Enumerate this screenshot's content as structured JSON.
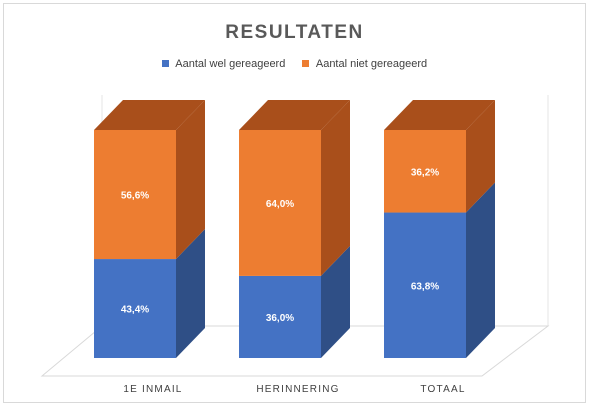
{
  "chart_data": {
    "type": "bar",
    "stacked": true,
    "percent_stacked": true,
    "style": "3d",
    "title": "RESULTATEN",
    "categories": [
      "1E INMAIL",
      "HERINNERING",
      "TOTAAL"
    ],
    "series": [
      {
        "name": "Aantal wel gereageerd",
        "values": [
          43.4,
          36.0,
          63.8
        ],
        "labels": [
          "43,4%",
          "36,0%",
          "63,8%"
        ],
        "color": "#4472C4",
        "side_color": "#2F4F86"
      },
      {
        "name": "Aantal niet gereageerd",
        "values": [
          56.6,
          64.0,
          36.2
        ],
        "labels": [
          "56,6%",
          "64,0%",
          "36,2%"
        ],
        "color": "#ED7D31",
        "side_color": "#A94F1B"
      }
    ],
    "ylim": [
      0,
      100
    ],
    "legend": "top",
    "grid": true,
    "xlabel": "",
    "ylabel": ""
  }
}
